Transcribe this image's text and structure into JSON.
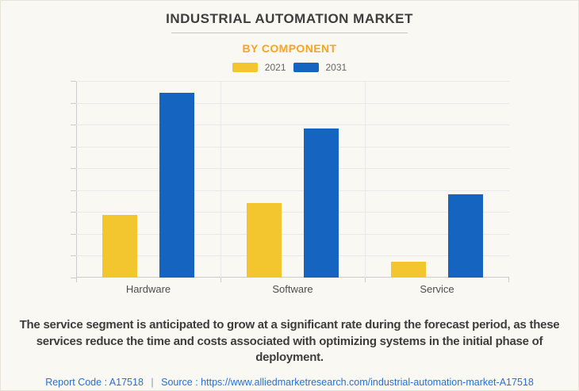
{
  "page": {
    "title": "INDUSTRIAL AUTOMATION MARKET",
    "subtitle": "BY COMPONENT"
  },
  "chart_data": {
    "type": "bar",
    "title": "INDUSTRIAL AUTOMATION MARKET",
    "subtitle": "BY COMPONENT",
    "categories": [
      "Hardware",
      "Software",
      "Service"
    ],
    "series": [
      {
        "name": "2021",
        "color": "#F3C62F",
        "values": [
          32,
          38,
          8
        ]
      },
      {
        "name": "2031",
        "color": "#1565C0",
        "values": [
          94,
          76,
          42.5
        ]
      }
    ],
    "xlabel": "",
    "ylabel": "",
    "ylim": [
      0,
      100
    ],
    "values_note": "y-axis unlabeled; values estimated as % of top gridline",
    "grid": "horizontal, 9 intervals, vertical lines at category boundaries",
    "legend_position": "top-center"
  },
  "description": "The service segment is anticipated to grow at a significant rate during the forecast period, as these services reduce the time and costs associated with optimizing systems in the initial phase of deployment.",
  "footer": {
    "report_code": "Report Code : A17518",
    "separator": "|",
    "source_label": "Source :",
    "source_url": "https://www.alliedmarketresearch.com/industrial-automation-market-A17518"
  }
}
